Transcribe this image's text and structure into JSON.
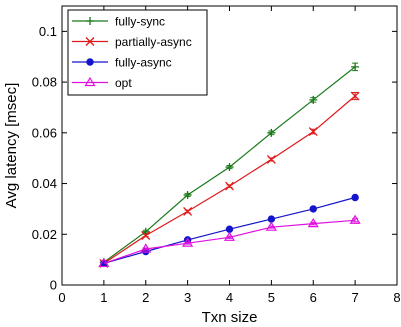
{
  "chart_data": {
    "type": "line",
    "xlabel": "Txn size",
    "ylabel": "Avg latency [msec]",
    "xlim": [
      0,
      8
    ],
    "ylim": [
      0,
      0.11
    ],
    "x_ticks": [
      "0",
      "1",
      "2",
      "3",
      "4",
      "5",
      "6",
      "7",
      "8"
    ],
    "y_ticks": [
      "0",
      "0.02",
      "0.04",
      "0.06",
      "0.08",
      "0.1"
    ],
    "x_tick_values": [
      0,
      1,
      2,
      3,
      4,
      5,
      6,
      7,
      8
    ],
    "y_tick_values": [
      0,
      0.02,
      0.04,
      0.06,
      0.08,
      0.1
    ],
    "x": [
      1,
      2,
      3,
      4,
      5,
      6,
      7
    ],
    "legend_position": "top-left",
    "grid": false,
    "series": [
      {
        "name": "fully-sync",
        "color": "#1a7a1a",
        "marker": "plus",
        "values": [
          0.009,
          0.021,
          0.0355,
          0.0465,
          0.06,
          0.073,
          0.086
        ],
        "error": [
          0,
          0.0006,
          0.0006,
          0.0006,
          0.0007,
          0.0009,
          0.0015
        ]
      },
      {
        "name": "partially-async",
        "color": "#e0191b",
        "marker": "cross",
        "values": [
          0.0085,
          0.0195,
          0.029,
          0.039,
          0.0495,
          0.0605,
          0.0745
        ],
        "error": [
          0,
          0.0005,
          0.0005,
          0.0005,
          0.0006,
          0.0009,
          0.0014
        ]
      },
      {
        "name": "fully-async",
        "color": "#1414cc",
        "marker": "circle",
        "values": [
          0.0085,
          0.0132,
          0.0178,
          0.022,
          0.026,
          0.03,
          0.0345
        ],
        "error": [
          0,
          0.0004,
          0.0004,
          0.0004,
          0.0004,
          0.0005,
          0.0006
        ]
      },
      {
        "name": "opt",
        "color": "#e010e0",
        "marker": "triangle",
        "values": [
          0.0085,
          0.0142,
          0.0165,
          0.0188,
          0.0228,
          0.0242,
          0.0255
        ],
        "error": [
          0,
          0.0004,
          0.0004,
          0.0004,
          0.0004,
          0.0005,
          0.0006
        ]
      }
    ]
  }
}
